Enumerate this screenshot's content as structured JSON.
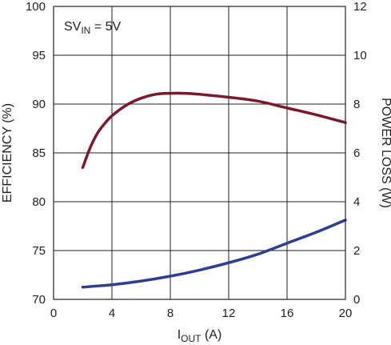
{
  "chart_data": {
    "type": "line",
    "annotation": {
      "main": "SV",
      "sub": "IN",
      "tail": " = 5V"
    },
    "xlabel": {
      "main": "I",
      "sub": "OUT",
      "tail": " (A)"
    },
    "ylabel_left": "EFFICIENCY (%)",
    "ylabel_right": "POWER LOSS (W)",
    "xlim": [
      0,
      20
    ],
    "ylim_left": [
      70,
      100
    ],
    "ylim_right": [
      0,
      12
    ],
    "x_ticks": [
      "0",
      "4",
      "8",
      "12",
      "16",
      "20"
    ],
    "y_left_ticks": [
      "70",
      "75",
      "80",
      "85",
      "90",
      "95",
      "100"
    ],
    "y_right_ticks": [
      "0",
      "2",
      "4",
      "6",
      "8",
      "10",
      "12"
    ],
    "grid": true,
    "colors": {
      "efficiency": "#7a1a2c",
      "power_loss": "#2e3f8f",
      "grid": "#222222"
    },
    "series": [
      {
        "axis": "left",
        "x": [
          2,
          2.5,
          3,
          3.5,
          4,
          5,
          6,
          7,
          8,
          9,
          10,
          12,
          14,
          16,
          18,
          20
        ],
        "y": [
          83.5,
          85.5,
          87.0,
          88.0,
          88.8,
          89.9,
          90.6,
          91.0,
          91.1,
          91.1,
          91.0,
          90.7,
          90.3,
          89.6,
          88.9,
          88.1
        ]
      },
      {
        "axis": "right",
        "x": [
          2,
          4,
          6,
          8,
          10,
          12,
          14,
          16,
          18,
          20
        ],
        "y": [
          0.5,
          0.6,
          0.75,
          0.95,
          1.2,
          1.5,
          1.85,
          2.3,
          2.75,
          3.25
        ]
      }
    ]
  }
}
